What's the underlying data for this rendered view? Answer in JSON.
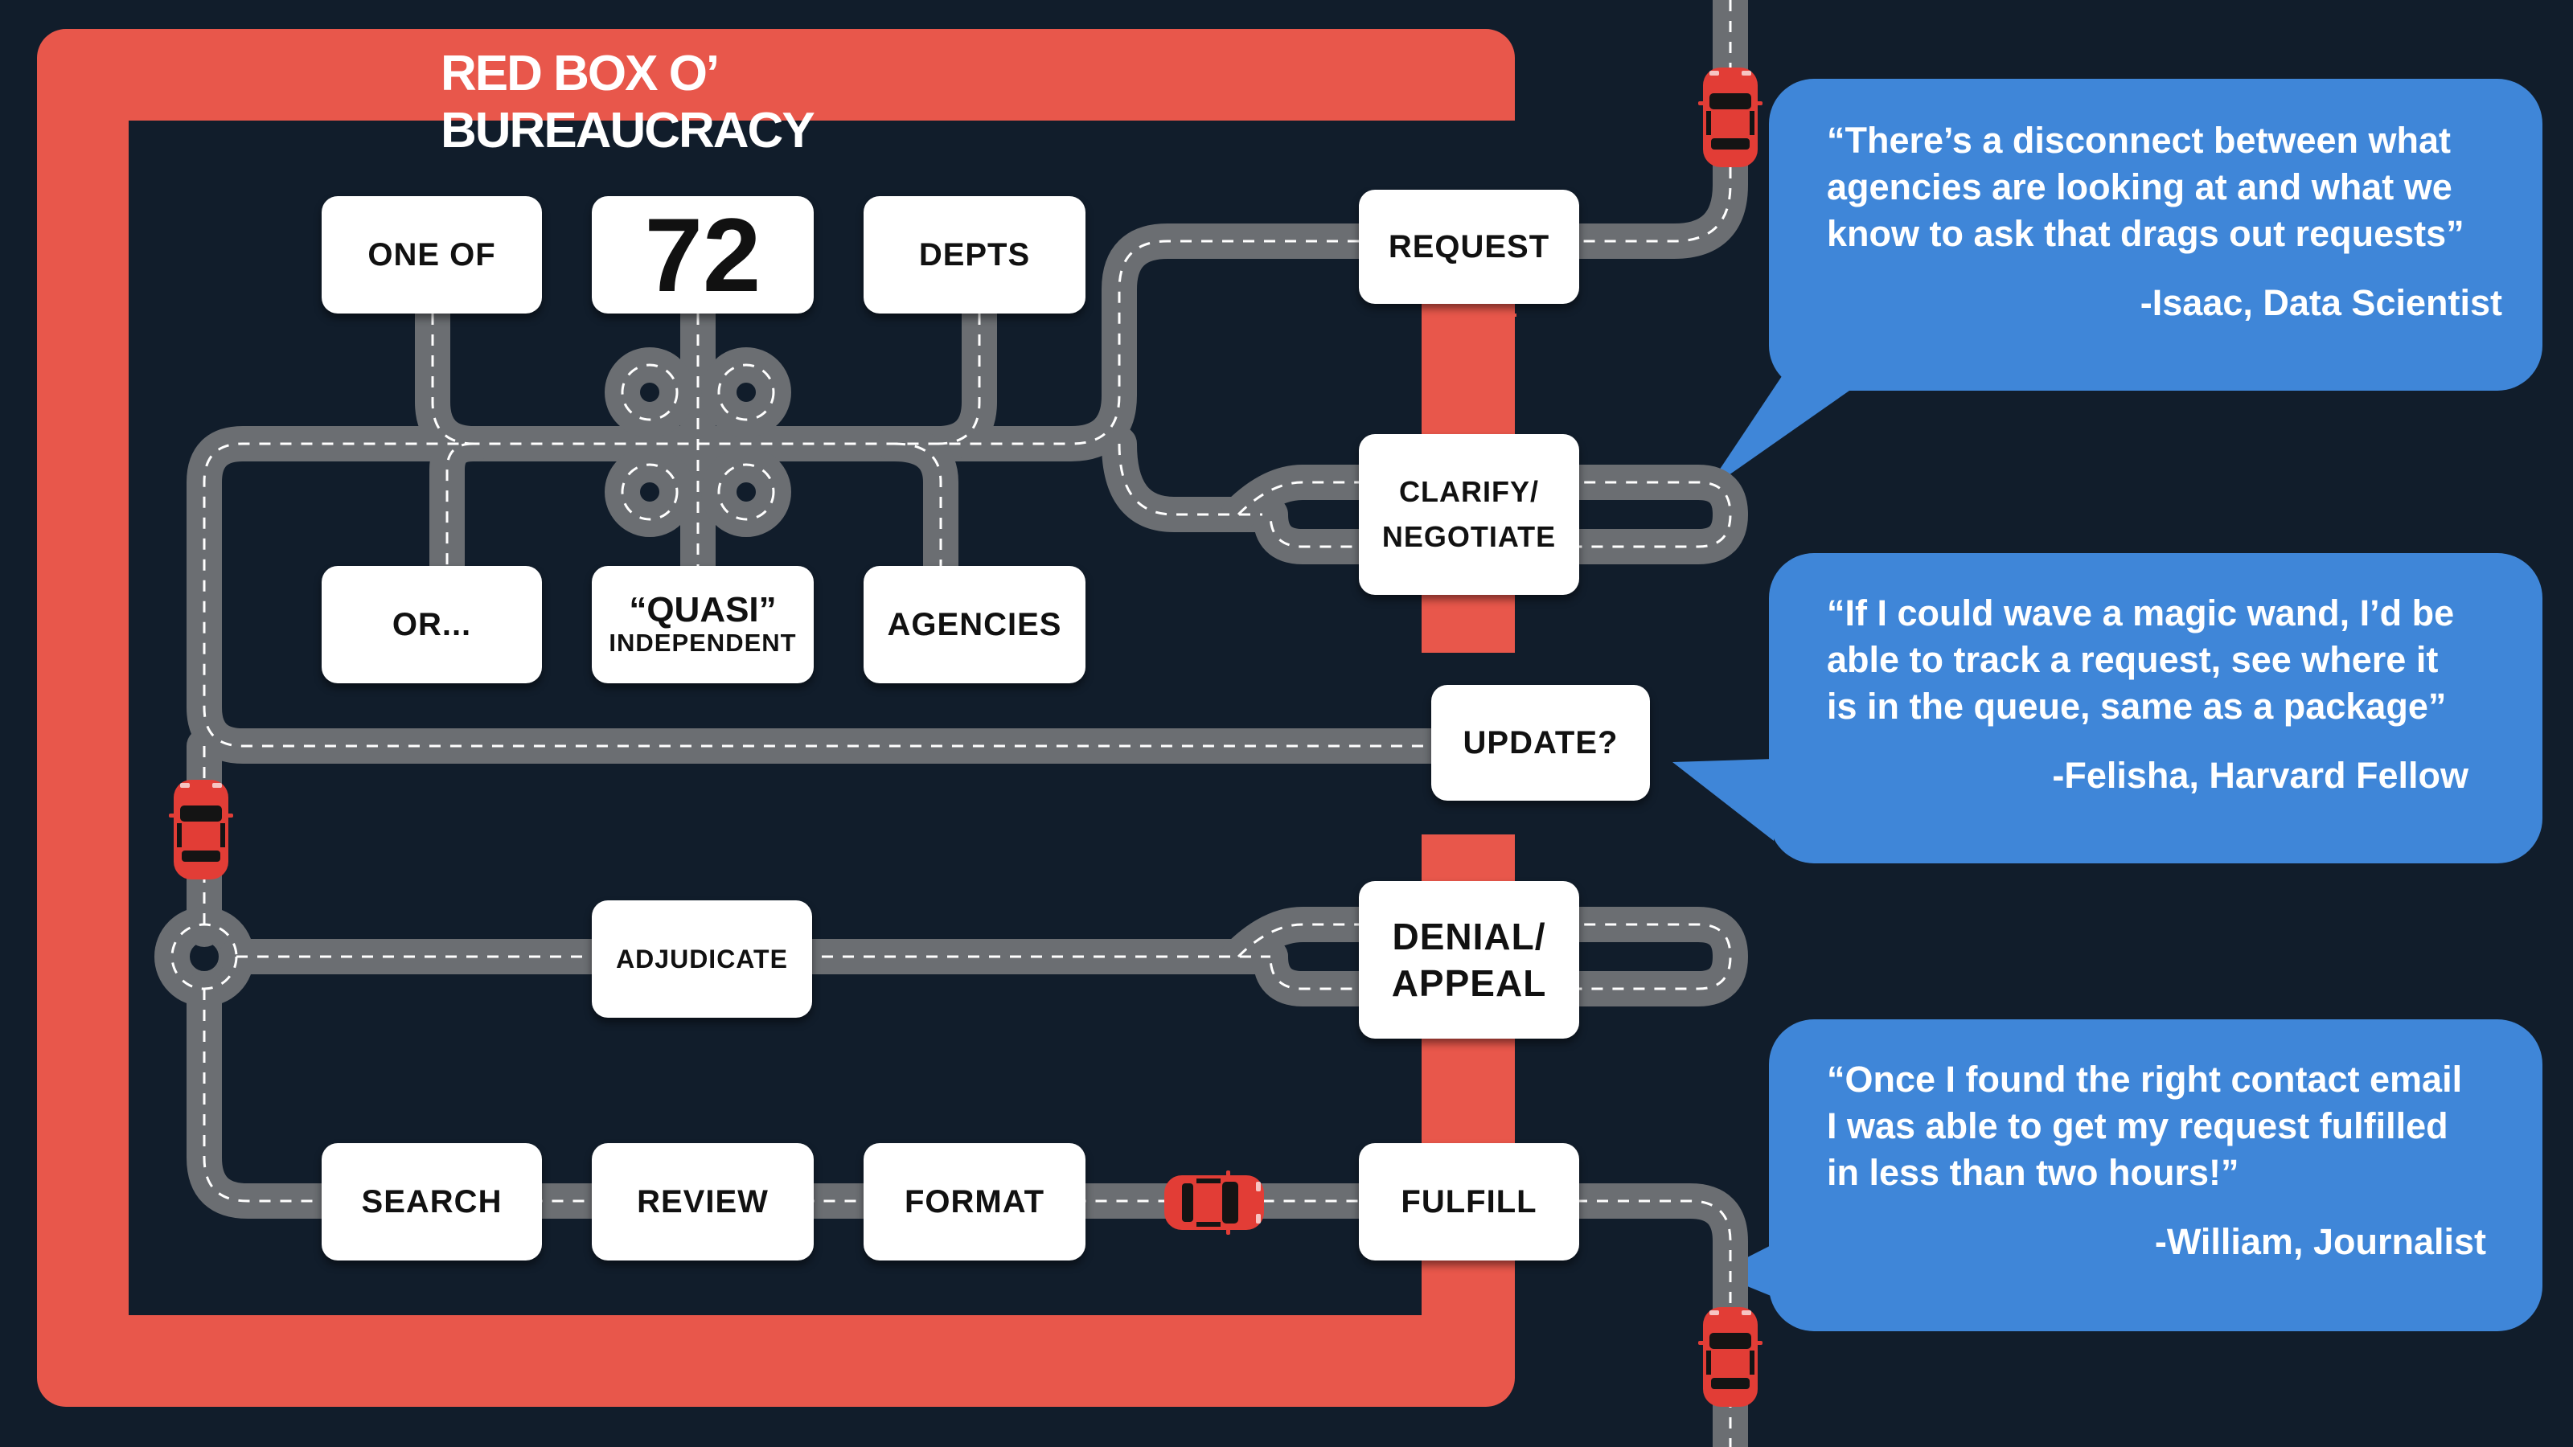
{
  "title": "RED BOX O’ BUREAUCRACY",
  "nodes": {
    "one_of": "ONE OF",
    "number": "72",
    "depts": "DEPTS",
    "or": "OR...",
    "quasi_line1": "“QUASI”",
    "quasi_line2": "INDEPENDENT",
    "agencies": "AGENCIES",
    "request": "REQUEST",
    "clarify_line1": "CLARIFY/",
    "clarify_line2": "NEGOTIATE",
    "update": "UPDATE?",
    "adjudicate": "ADJUDICATE",
    "denial_line1": "DENIAL/",
    "denial_line2": "APPEAL",
    "search": "SEARCH",
    "review": "REVIEW",
    "format": "FORMAT",
    "fulfill": "FULFILL"
  },
  "quotes": [
    {
      "lines": [
        "“There’s a disconnect between what",
        "agencies are looking at and what we",
        "know to ask that drags out requests”"
      ],
      "attribution": "-Isaac, Data Scientist"
    },
    {
      "lines": [
        "“If I could wave a magic wand, I’d be",
        "able to track a request, see where it",
        "is in the queue, same as a package”"
      ],
      "attribution": "-Felisha, Harvard Fellow"
    },
    {
      "lines": [
        "“Once I found the right contact email",
        "I was able to get my request fulfilled",
        "in less than two hours!”"
      ],
      "attribution": "-William, Journalist"
    }
  ],
  "colors": {
    "background": "#111d2b",
    "red_box": "#e8574b",
    "bubble": "#3f86d8",
    "road": "#6b6e72",
    "car": "#e23d36"
  },
  "icons": [
    "red-car-icon"
  ]
}
